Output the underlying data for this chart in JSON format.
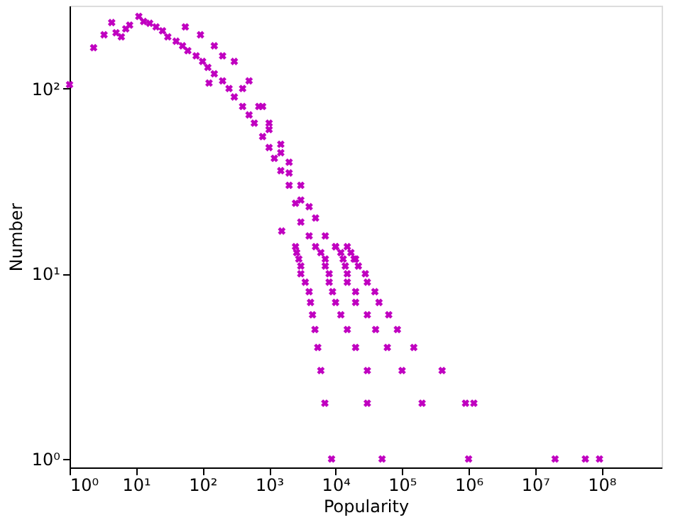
{
  "chart_data": {
    "type": "scatter",
    "xlabel": "Popularity",
    "ylabel": "Number",
    "log": "xy",
    "grid": false,
    "marker": "cross",
    "color": "#c000c0",
    "xlim": [
      1,
      800000000
    ],
    "ylim": [
      0.9,
      280
    ],
    "xticks": [
      {
        "value": 1,
        "label": "10⁰"
      },
      {
        "value": 10,
        "label": "10¹"
      },
      {
        "value": 100,
        "label": "10²"
      },
      {
        "value": 1000,
        "label": "10³"
      },
      {
        "value": 10000,
        "label": "10⁴"
      },
      {
        "value": 100000,
        "label": "10⁵"
      },
      {
        "value": 1000000,
        "label": "10⁶"
      },
      {
        "value": 10000000,
        "label": "10⁷"
      },
      {
        "value": 100000000,
        "label": "10⁸"
      }
    ],
    "yticks": [
      {
        "value": 1,
        "label": "10⁰"
      },
      {
        "value": 10,
        "label": "10¹"
      },
      {
        "value": 100,
        "label": "10²"
      }
    ],
    "x": [
      1,
      2.3,
      3.3,
      4.3,
      5,
      6,
      7,
      8,
      11,
      13,
      16,
      20,
      25,
      30,
      40,
      50,
      55,
      60,
      80,
      93,
      100,
      120,
      125,
      150,
      150,
      200,
      200,
      250,
      300,
      300,
      400,
      400,
      500,
      500,
      600,
      700,
      800,
      800,
      1000,
      1000,
      1000,
      1200,
      1500,
      1500,
      1500,
      1550,
      2000,
      2000,
      2000,
      2500,
      3000,
      3000,
      3000,
      4000,
      4000,
      5000,
      7000,
      10000,
      20000,
      2500,
      5000,
      10000,
      15000,
      2600,
      6000,
      12000,
      17000,
      2800,
      7000,
      13000,
      19000,
      3000,
      7000,
      14000,
      22000,
      3000,
      8000,
      15000,
      28000,
      3500,
      8000,
      15000,
      30000,
      4000,
      9000,
      20000,
      39000,
      4200,
      10000,
      20000,
      45000,
      4500,
      12000,
      30000,
      63000,
      4900,
      15000,
      40000,
      85000,
      5400,
      20000,
      60000,
      150000,
      6000,
      30000,
      100000,
      400000,
      6900,
      30000,
      200000,
      900000,
      1200000,
      8700,
      50000,
      1000000,
      20000000,
      57000000,
      93000000
    ],
    "values": [
      105,
      166,
      195,
      227,
      200,
      190,
      210,
      220,
      245,
      230,
      225,
      215,
      205,
      190,
      180,
      170,
      215,
      160,
      150,
      195,
      140,
      130,
      107,
      120,
      170,
      110,
      150,
      100,
      90,
      140,
      80,
      100,
      72,
      110,
      65,
      80,
      55,
      80,
      48,
      65,
      60,
      42,
      36,
      50,
      45,
      17,
      30,
      40,
      35,
      24,
      19,
      30,
      25,
      16,
      23,
      20,
      16,
      14,
      12,
      14,
      14,
      14,
      14,
      13,
      13,
      13,
      13,
      12,
      12,
      12,
      12,
      11,
      11,
      11,
      11,
      10,
      10,
      10,
      10,
      9,
      9,
      9,
      9,
      8,
      8,
      8,
      8,
      7,
      7,
      7,
      7,
      6,
      6,
      6,
      6,
      5,
      5,
      5,
      5,
      4,
      4,
      4,
      4,
      3,
      3,
      3,
      3,
      2,
      2,
      2,
      2,
      2,
      1,
      1,
      1,
      1,
      1,
      1
    ]
  }
}
